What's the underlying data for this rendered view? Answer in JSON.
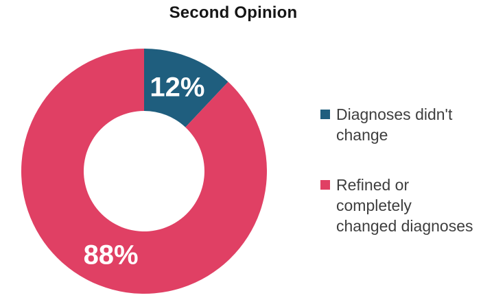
{
  "page": {
    "background": "#FFFFFF"
  },
  "chart_data": {
    "type": "pie",
    "subtype": "donut",
    "title": "Second Opinion",
    "categories": [
      "Diagnoses didn't change",
      "Refined or completely changed diagnoses"
    ],
    "values": [
      12,
      88
    ],
    "labels": [
      "12%",
      "88%"
    ],
    "colors": [
      "#1F5E7E",
      "#E04064"
    ],
    "start_angle_deg": 0,
    "direction": "clockwise",
    "inner_radius_ratio": 0.49,
    "legend_position": "right",
    "data_label_color": "#FFFFFF"
  },
  "legend": {
    "items": [
      {
        "label": "Diagnoses didn't\nchange",
        "color": "#1F5E7E"
      },
      {
        "label": "Refined or\ncompletely\nchanged diagnoses",
        "color": "#E04064"
      }
    ]
  }
}
